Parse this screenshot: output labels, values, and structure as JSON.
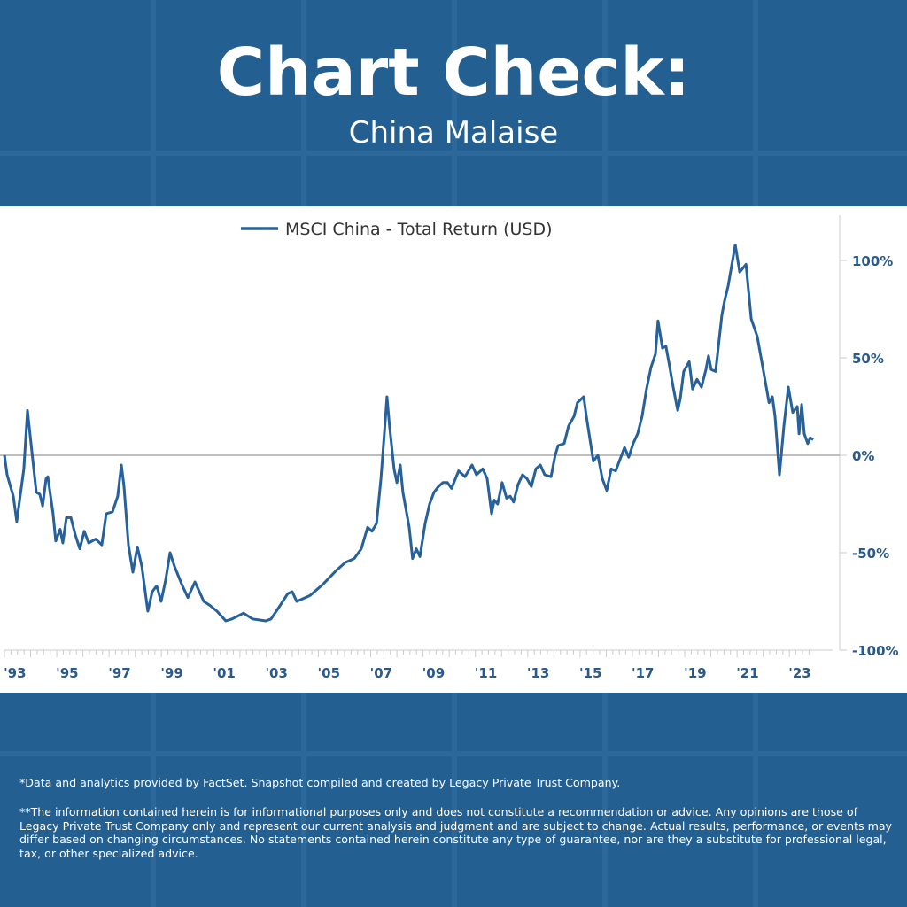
{
  "header": {
    "title": "Chart Check:",
    "subtitle": "China Malaise"
  },
  "colors": {
    "background": "#245f91",
    "line": "#26619b",
    "axis_text": "#2a5a8c"
  },
  "chart_data": {
    "type": "line",
    "title": "",
    "xlabel": "",
    "ylabel": "",
    "legend": {
      "entries": [
        "MSCI China - Total Return (USD)"
      ],
      "placement": "top-center"
    },
    "xlim": [
      1993,
      2023.9
    ],
    "ylim": [
      -100,
      120
    ],
    "x_ticks": [
      1993,
      1995,
      1997,
      1999,
      2001,
      2003,
      2005,
      2007,
      2009,
      2011,
      2013,
      2015,
      2017,
      2019,
      2021,
      2023
    ],
    "x_tick_labels": [
      "'93",
      "'95",
      "'97",
      "'99",
      "'01",
      "'03",
      "'05",
      "'07",
      "'09",
      "'11",
      "'13",
      "'15",
      "'17",
      "'19",
      "'21",
      "'23"
    ],
    "y_ticks": [
      100,
      50,
      0,
      -50,
      -100
    ],
    "y_tick_labels": [
      "100%",
      "50%",
      "0%",
      "-50%",
      "-100%"
    ],
    "y_axis_side": "right",
    "reference_line": 0,
    "series": [
      {
        "name": "MSCI China - Total Return (USD)",
        "x": [
          1993.0,
          1993.1,
          1993.34,
          1993.47,
          1993.74,
          1993.88,
          1994.08,
          1994.22,
          1994.35,
          1994.46,
          1994.59,
          1994.66,
          1994.86,
          1994.96,
          1995.13,
          1995.23,
          1995.37,
          1995.54,
          1995.71,
          1995.88,
          1996.05,
          1996.22,
          1996.49,
          1996.72,
          1996.89,
          1997.13,
          1997.33,
          1997.47,
          1997.57,
          1997.74,
          1997.91,
          1998.08,
          1998.25,
          1998.48,
          1998.65,
          1998.82,
          1998.99,
          1999.16,
          1999.33,
          1999.5,
          1999.77,
          2000.01,
          2000.28,
          2000.62,
          2000.85,
          2001.12,
          2001.46,
          2001.7,
          2002.14,
          2002.48,
          2002.99,
          2003.19,
          2003.49,
          2003.83,
          2004.0,
          2004.17,
          2004.68,
          2005.19,
          2005.69,
          2006.03,
          2006.37,
          2006.64,
          2006.88,
          2007.05,
          2007.22,
          2007.39,
          2007.52,
          2007.62,
          2007.72,
          2007.89,
          2008.0,
          2008.13,
          2008.23,
          2008.47,
          2008.6,
          2008.74,
          2008.88,
          2009.08,
          2009.25,
          2009.42,
          2009.59,
          2009.76,
          2009.93,
          2010.09,
          2010.36,
          2010.6,
          2010.87,
          2011.04,
          2011.28,
          2011.45,
          2011.62,
          2011.72,
          2011.85,
          2012.02,
          2012.19,
          2012.33,
          2012.46,
          2012.63,
          2012.8,
          2012.97,
          2013.14,
          2013.31,
          2013.48,
          2013.65,
          2013.89,
          2014.05,
          2014.16,
          2014.39,
          2014.56,
          2014.77,
          2014.9,
          2015.14,
          2015.24,
          2015.51,
          2015.68,
          2015.85,
          2016.02,
          2016.19,
          2016.36,
          2016.53,
          2016.7,
          2016.86,
          2017.03,
          2017.2,
          2017.37,
          2017.54,
          2017.71,
          2017.88,
          2017.98,
          2018.15,
          2018.28,
          2018.39,
          2018.56,
          2018.73,
          2018.83,
          2018.96,
          2019.17,
          2019.3,
          2019.47,
          2019.64,
          2019.81,
          2019.91,
          2020.01,
          2020.18,
          2020.42,
          2020.52,
          2020.66,
          2020.79,
          2020.93,
          2021.1,
          2021.34,
          2021.54,
          2021.77,
          2022.01,
          2022.22,
          2022.35,
          2022.45,
          2022.62,
          2022.79,
          2022.96,
          2023.13,
          2023.3,
          2023.37,
          2023.47,
          2023.57,
          2023.7,
          2023.8,
          2023.91
        ],
        "y": [
          0,
          -10,
          -21,
          -34,
          -7,
          23,
          -2,
          -19,
          -20,
          -26,
          -12,
          -11,
          -30,
          -44,
          -38,
          -45,
          -32,
          -32,
          -41,
          -48,
          -39,
          -45,
          -43,
          -46,
          -30,
          -29,
          -21,
          -5,
          -16,
          -46,
          -60,
          -47,
          -57,
          -80,
          -70,
          -67,
          -75,
          -64,
          -50,
          -57,
          -66,
          -73,
          -65,
          -75,
          -77,
          -80,
          -85,
          -84,
          -81,
          -84,
          -85,
          -84,
          -78,
          -71,
          -70,
          -75,
          -72,
          -66,
          -59,
          -55,
          -53,
          -48,
          -37,
          -39,
          -35,
          -12,
          11,
          30,
          15,
          -7,
          -14,
          -5,
          -19,
          -37,
          -53,
          -48,
          -52,
          -35,
          -25,
          -19,
          -16,
          -14,
          -14,
          -17,
          -8,
          -11,
          -5,
          -10,
          -7,
          -12,
          -30,
          -23,
          -25,
          -14,
          -22,
          -21,
          -24,
          -15,
          -10,
          -12,
          -16,
          -7,
          -5,
          -10,
          -11,
          0,
          5,
          6,
          15,
          20,
          27,
          30,
          20,
          -3,
          0,
          -12,
          -18,
          -7,
          -8,
          -2,
          4,
          -1,
          6,
          11,
          20,
          34,
          45,
          52,
          69,
          55,
          56,
          48,
          35,
          23,
          29,
          43,
          48,
          34,
          39,
          35,
          44,
          51,
          44,
          43,
          72,
          79,
          87,
          97,
          108,
          94,
          98,
          70,
          61,
          43,
          27,
          30,
          20,
          -10,
          15,
          35,
          22,
          25,
          11,
          26,
          11,
          6,
          9,
          8
        ]
      }
    ]
  },
  "footer": {
    "source_note": "*Data and analytics provided by FactSet. Snapshot compiled and created by Legacy Private Trust Company.",
    "disclaimer": "**The information contained herein is for informational purposes only and does not constitute a recommendation or advice. Any opinions are those of Legacy Private Trust Company only and represent our current analysis and judgment and are subject to change. Actual results, performance, or events may differ based on changing circumstances. No statements contained herein constitute any type of guarantee, nor are they a substitute for professional legal, tax, or other specialized advice."
  }
}
